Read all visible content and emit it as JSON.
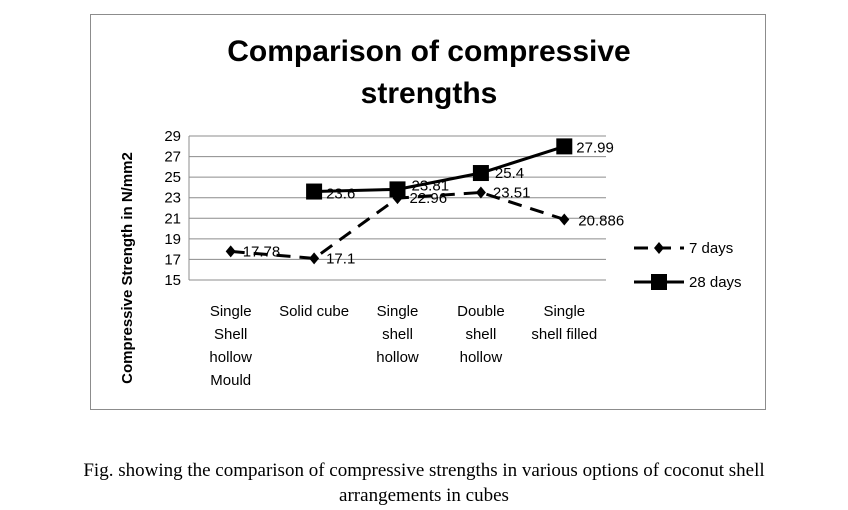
{
  "chart_data": {
    "type": "line",
    "title_lines": [
      "Comparison of compressive",
      "strengths"
    ],
    "ylabel": "Compressive Strength in N/mm2",
    "xlabel": "",
    "ylim": [
      15,
      29
    ],
    "yticks": [
      "15",
      "17",
      "19",
      "21",
      "23",
      "25",
      "27",
      "29"
    ],
    "grid": true,
    "legend_position": "right",
    "categories": [
      [
        "Single",
        "Shell",
        "hollow",
        "Mould"
      ],
      [
        "Solid cube"
      ],
      [
        "Single",
        "shell",
        "hollow"
      ],
      [
        "Double",
        "shell",
        "hollow"
      ],
      [
        "Single",
        "shell filled"
      ]
    ],
    "series": [
      {
        "name": "7 days",
        "marker": "diamond",
        "line_style": "dashed",
        "values": [
          17.78,
          17.1,
          22.96,
          23.51,
          20.886
        ],
        "labels": [
          "17.78",
          "17.1",
          "22.96",
          "23.51",
          "20.886"
        ]
      },
      {
        "name": "28 days",
        "marker": "square",
        "line_style": "solid",
        "values": [
          null,
          23.6,
          23.81,
          25.4,
          27.99
        ],
        "labels": [
          "",
          "23.6",
          "23.81",
          "25.4",
          "27.99"
        ]
      }
    ]
  },
  "caption_lines": [
    "Fig. showing the comparison of compressive strengths in various options of coconut shell",
    "arrangements in cubes"
  ]
}
